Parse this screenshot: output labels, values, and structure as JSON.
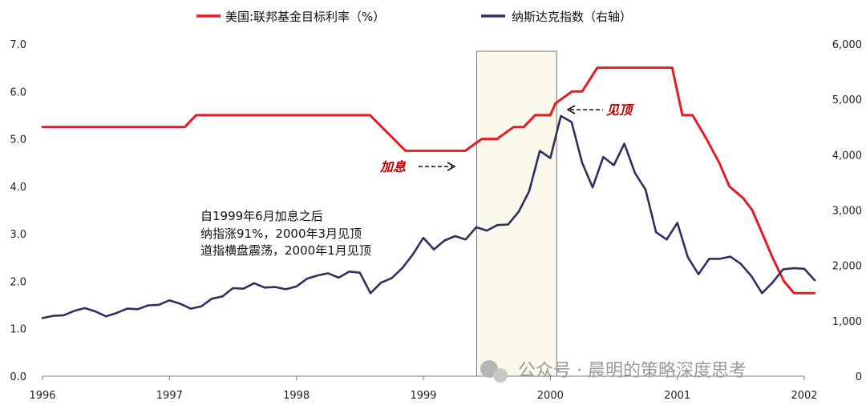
{
  "chart_data": {
    "type": "line",
    "legend": {
      "placement": "top",
      "entries": [
        "美国:联邦基金目标利率（%）",
        "纳斯达克指数（右轴）"
      ]
    },
    "colors": {
      "fed": "#e51c23",
      "nasdaq": "#2e3160",
      "shade": "#faf8ea",
      "shade_border": "#777777"
    },
    "x_ticks": [
      "1996",
      "1997",
      "1998",
      "1999",
      "2000",
      "2001",
      "2002"
    ],
    "xlim": [
      1996.0,
      2002.0
    ],
    "y_left": {
      "ticks": [
        "0.0",
        "1.0",
        "2.0",
        "3.0",
        "4.0",
        "5.0",
        "6.0",
        "7.0"
      ],
      "lim": [
        0,
        7
      ]
    },
    "y_right": {
      "ticks": [
        "0",
        "1,000",
        "2,000",
        "3,000",
        "4,000",
        "5,000",
        "6,000"
      ],
      "lim": [
        0,
        6000
      ]
    },
    "shaded_period": [
      1999.42,
      2000.05
    ],
    "series": [
      {
        "name": "美国:联邦基金目标利率（%）",
        "axis": "left",
        "x": [
          1996.0,
          1997.12,
          1997.21,
          1998.58,
          1998.86,
          1999.33,
          1999.46,
          1999.58,
          1999.71,
          1999.79,
          1999.88,
          2000.0,
          2000.04,
          2000.17,
          2000.25,
          2000.37,
          2000.96,
          2001.04,
          2001.12,
          2001.23,
          2001.33,
          2001.41,
          2001.52,
          2001.59,
          2001.67,
          2001.75,
          2001.84,
          2001.92,
          2002.08
        ],
        "y": [
          5.25,
          5.25,
          5.5,
          5.5,
          4.75,
          4.75,
          5.0,
          5.0,
          5.25,
          5.25,
          5.5,
          5.5,
          5.75,
          6.0,
          6.0,
          6.5,
          6.5,
          5.5,
          5.5,
          5.0,
          4.5,
          4.0,
          3.75,
          3.5,
          3.0,
          2.5,
          2.0,
          1.75,
          1.75
        ]
      },
      {
        "name": "纳斯达克指数（右轴）",
        "axis": "right",
        "x": [
          1996.0,
          1996.083,
          1996.167,
          1996.25,
          1996.333,
          1996.417,
          1996.5,
          1996.583,
          1996.667,
          1996.75,
          1996.833,
          1996.917,
          1997.0,
          1997.083,
          1997.167,
          1997.25,
          1997.333,
          1997.417,
          1997.5,
          1997.583,
          1997.667,
          1997.75,
          1997.833,
          1997.917,
          1998.0,
          1998.083,
          1998.167,
          1998.25,
          1998.333,
          1998.417,
          1998.5,
          1998.583,
          1998.667,
          1998.75,
          1998.833,
          1998.917,
          1999.0,
          1999.083,
          1999.167,
          1999.25,
          1999.333,
          1999.417,
          1999.5,
          1999.583,
          1999.667,
          1999.75,
          1999.833,
          1999.917,
          2000.0,
          2000.083,
          2000.167,
          2000.25,
          2000.333,
          2000.417,
          2000.5,
          2000.583,
          2000.667,
          2000.75,
          2000.833,
          2000.917,
          2001.0,
          2001.083,
          2001.167,
          2001.25,
          2001.333,
          2001.417,
          2001.5,
          2001.583,
          2001.667,
          2001.75,
          2001.833,
          2001.917,
          2002.0,
          2002.083
        ],
        "y": [
          1050,
          1090,
          1100,
          1180,
          1230,
          1170,
          1080,
          1140,
          1220,
          1210,
          1280,
          1290,
          1370,
          1310,
          1220,
          1260,
          1400,
          1440,
          1590,
          1580,
          1680,
          1600,
          1610,
          1570,
          1620,
          1760,
          1820,
          1860,
          1780,
          1890,
          1870,
          1500,
          1690,
          1770,
          1950,
          2200,
          2500,
          2290,
          2450,
          2530,
          2470,
          2690,
          2630,
          2730,
          2740,
          2970,
          3340,
          4070,
          3940,
          4700,
          4590,
          3860,
          3410,
          3960,
          3810,
          4200,
          3670,
          3370,
          2600,
          2470,
          2770,
          2150,
          1840,
          2120,
          2120,
          2160,
          2030,
          1810,
          1500,
          1690,
          1930,
          1950,
          1940,
          1730
        ]
      }
    ],
    "annotations": {
      "note_lines": [
        "自1999年6月加息之后",
        "纳指涨91%，2000年3月见顶",
        "道指横盘震荡，2000年1月见顶"
      ],
      "hike_label": "加息",
      "peak_label": "见顶"
    }
  },
  "watermark": "公众号 · 晨明的策略深度思考"
}
